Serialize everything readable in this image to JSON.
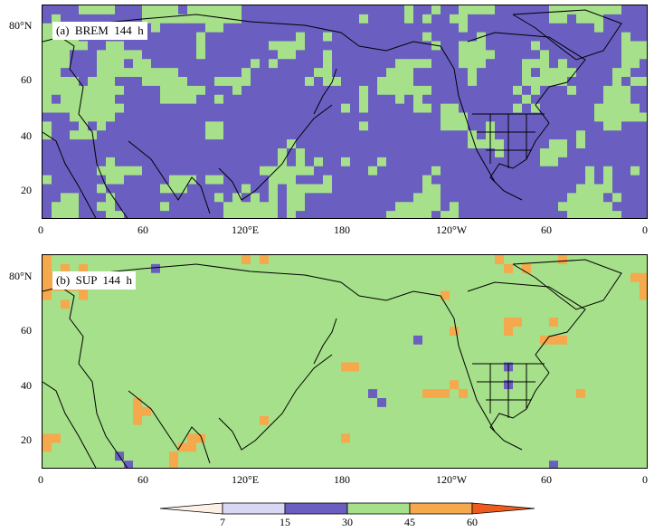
{
  "panels": [
    {
      "label": "(a)  BREM  144  h",
      "x_ticks": [
        "0",
        "60",
        "120°E",
        "180",
        "120°W",
        "60",
        "0"
      ],
      "y_ticks": [
        "80°N",
        "60",
        "40",
        "20"
      ]
    },
    {
      "label": "(b)  SUP  144  h",
      "x_ticks": [
        "0",
        "60",
        "120°E",
        "180",
        "120°W",
        "60",
        "0"
      ],
      "y_ticks": [
        "80°N",
        "60",
        "40",
        "20"
      ]
    }
  ],
  "colorbar": {
    "levels": [
      "7",
      "15",
      "30",
      "45",
      "60"
    ],
    "colors": {
      "lt7": "#fdf0e6",
      "7-15": "#d9d8f4",
      "15-30": "#6a5fc1",
      "30-45": "#a6e08a",
      "45-60": "#f5a84c",
      "gt60": "#ee5b1c"
    }
  },
  "colors": {
    "coastline": "#000000",
    "frame": "#000000"
  }
}
